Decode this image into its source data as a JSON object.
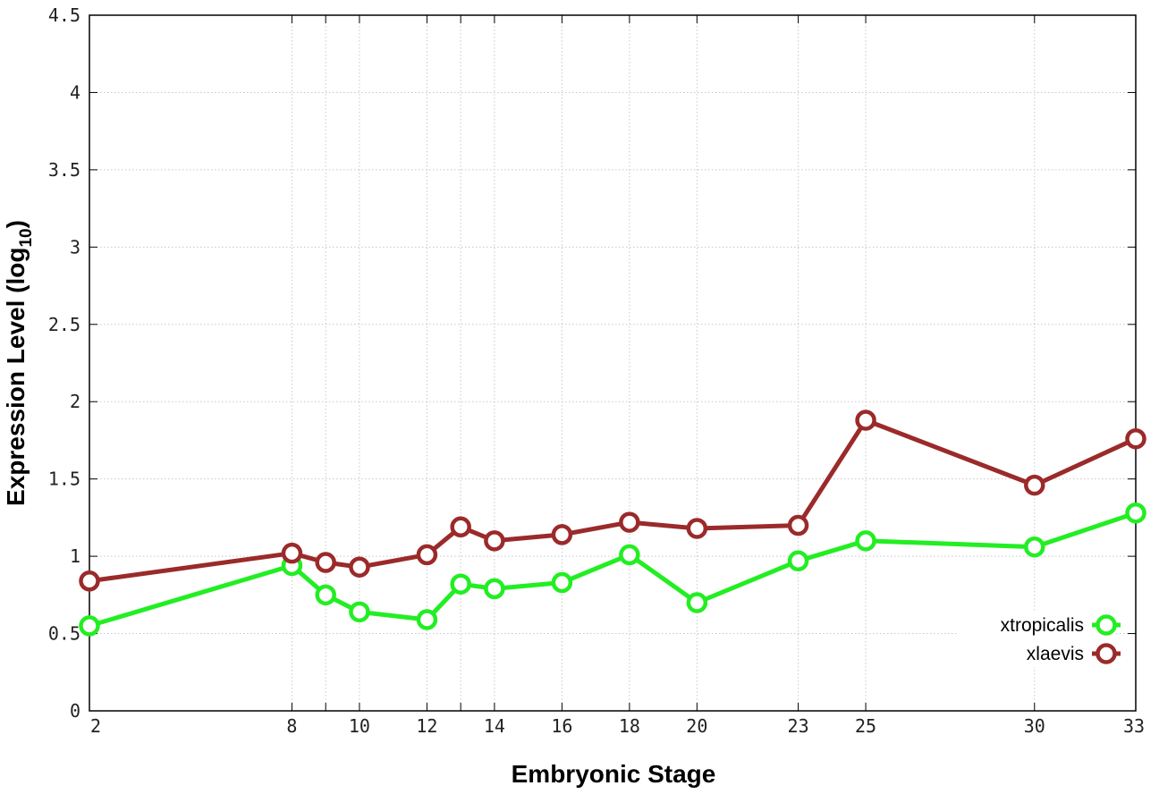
{
  "chart_data": {
    "type": "line",
    "xlabel": "Embryonic Stage",
    "ylabel": "Expression Level (log",
    "ylabel_sub": "10",
    "ylabel_close": ")",
    "x_categories": [
      "2",
      "8",
      "9",
      "10",
      "12",
      "13",
      "14",
      "16",
      "18",
      "20",
      "23",
      "25",
      "30",
      "33"
    ],
    "x_tick_labels": [
      "2",
      "8",
      "10",
      "12",
      "14",
      "16",
      "18",
      "20",
      "23",
      "25",
      "30",
      "33"
    ],
    "y_ticks": [
      "0",
      "0.5",
      "1",
      "1.5",
      "2",
      "2.5",
      "3",
      "3.5",
      "4",
      "4.5"
    ],
    "ylim": [
      0,
      4.5
    ],
    "grid": true,
    "legend_position": "bottom-right",
    "series": [
      {
        "name": "xtropicalis",
        "color": "#22ee22",
        "x": [
          2,
          8,
          9,
          10,
          12,
          13,
          14,
          16,
          18,
          20,
          23,
          25,
          30,
          33
        ],
        "values": [
          0.55,
          0.94,
          0.75,
          0.64,
          0.59,
          0.82,
          0.79,
          0.83,
          1.01,
          0.7,
          0.97,
          1.1,
          1.06,
          1.28
        ]
      },
      {
        "name": "xlaevis",
        "color": "#9b2a2a",
        "x": [
          2,
          8,
          9,
          10,
          12,
          13,
          14,
          16,
          18,
          20,
          23,
          25,
          30,
          33
        ],
        "values": [
          0.84,
          1.02,
          0.96,
          0.93,
          1.01,
          1.19,
          1.1,
          1.14,
          1.22,
          1.18,
          1.2,
          1.88,
          1.46,
          1.76
        ]
      }
    ]
  }
}
